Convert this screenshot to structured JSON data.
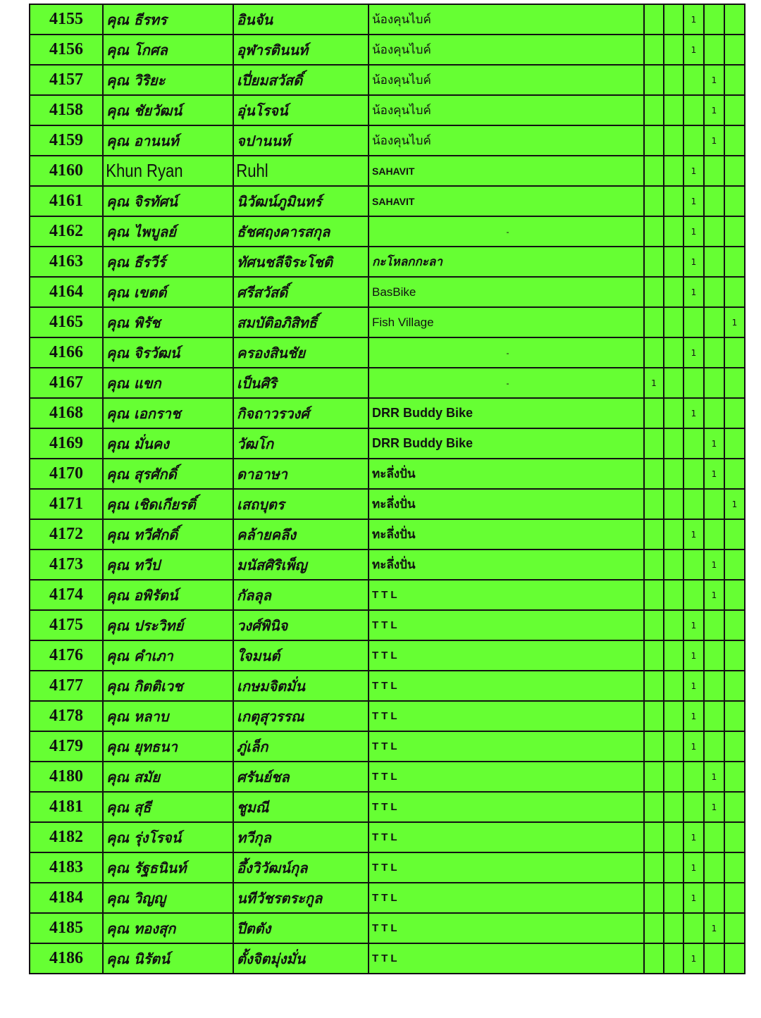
{
  "colors": {
    "row_background": "#66ff33",
    "border": "#111111"
  },
  "rows": [
    {
      "no": "4155",
      "first": "คุณ ธีรทร",
      "last": "อินจัน",
      "group": "น้องคุนไบค์",
      "marks": [
        "",
        "",
        "1",
        "",
        ""
      ]
    },
    {
      "no": "4156",
      "first": "คุณ โกศล",
      "last": "อุฬารตินนท์",
      "group": "น้องคุนไบค์",
      "marks": [
        "",
        "",
        "1",
        "",
        ""
      ]
    },
    {
      "no": "4157",
      "first": "คุณ วิริยะ",
      "last": "เปี่ยมสวัสดิ์",
      "group": "น้องคุนไบค์",
      "marks": [
        "",
        "",
        "",
        "1",
        ""
      ]
    },
    {
      "no": "4158",
      "first": "คุณ ชัยวัฒน์",
      "last": "อุ่นโรจน์",
      "group": "น้องคุนไบค์",
      "marks": [
        "",
        "",
        "",
        "1",
        ""
      ]
    },
    {
      "no": "4159",
      "first": "คุณ อานนท์",
      "last": "จปานนท์",
      "group": "น้องคุนไบค์",
      "marks": [
        "",
        "",
        "",
        "1",
        ""
      ]
    },
    {
      "no": "4160",
      "first": "Khun Ryan",
      "last": "Ruhl",
      "group": "SAHAVIT",
      "marks": [
        "",
        "",
        "1",
        "",
        ""
      ]
    },
    {
      "no": "4161",
      "first": "คุณ จิรทัศน์",
      "last": "นิวัฒน์ภูมินทร์",
      "group": "SAHAVIT",
      "marks": [
        "",
        "",
        "1",
        "",
        ""
      ]
    },
    {
      "no": "4162",
      "first": "คุณ ไพบูลย์",
      "last": "ธัชศฤงคารสกุล",
      "group": "-",
      "marks": [
        "",
        "",
        "1",
        "",
        ""
      ]
    },
    {
      "no": "4163",
      "first": "คุณ ธีรวีร์",
      "last": "ทัศนชลีจิระโชติ",
      "group": "กะโหลกกะลา",
      "marks": [
        "",
        "",
        "1",
        "",
        ""
      ]
    },
    {
      "no": "4164",
      "first": "คุณ เขตต์",
      "last": "ศรีสวัสดิ์",
      "group": "BasBike",
      "marks": [
        "",
        "",
        "1",
        "",
        ""
      ]
    },
    {
      "no": "4165",
      "first": "คุณ พิรัช",
      "last": "สมบัติอภิสิทธิ์",
      "group": "Fish Village",
      "marks": [
        "",
        "",
        "",
        "",
        "1"
      ]
    },
    {
      "no": "4166",
      "first": "คุณ จิรวัฒน์",
      "last": "ครองสินชัย",
      "group": "-",
      "marks": [
        "",
        "",
        "1",
        "",
        ""
      ]
    },
    {
      "no": "4167",
      "first": "คุณ แขก",
      "last": "เป็นศิริ",
      "group": "-",
      "marks": [
        "1",
        "",
        "",
        "",
        ""
      ]
    },
    {
      "no": "4168",
      "first": "คุณ เอกราช",
      "last": "กิจถาวรวงศ์",
      "group": "DRR Buddy Bike",
      "marks": [
        "",
        "",
        "1",
        "",
        ""
      ]
    },
    {
      "no": "4169",
      "first": "คุณ มั่นคง",
      "last": "วัฒโก",
      "group": "DRR Buddy Bike",
      "marks": [
        "",
        "",
        "",
        "1",
        ""
      ]
    },
    {
      "no": "4170",
      "first": "คุณ สุรศักดิ์",
      "last": "ดาอาษา",
      "group": "ทะลึ่งปั่น",
      "marks": [
        "",
        "",
        "",
        "1",
        ""
      ]
    },
    {
      "no": "4171",
      "first": "คุณ เชิดเกียรติ์",
      "last": "เสถบุตร",
      "group": "ทะลึ่งปั่น",
      "marks": [
        "",
        "",
        "",
        "",
        "1"
      ]
    },
    {
      "no": "4172",
      "first": "คุณ ทวีศักดิ์",
      "last": "คล้ายคลึง",
      "group": "ทะลึ่งปั่น",
      "marks": [
        "",
        "",
        "1",
        "",
        ""
      ]
    },
    {
      "no": "4173",
      "first": "คุณ ทวีป",
      "last": "มนัสศิริเพ็ญ",
      "group": "ทะลึ่งปั่น",
      "marks": [
        "",
        "",
        "",
        "1",
        ""
      ]
    },
    {
      "no": "4174",
      "first": "คุณ อพิรัตน์",
      "last": "กัลลุล",
      "group": "TTL",
      "marks": [
        "",
        "",
        "",
        "1",
        ""
      ]
    },
    {
      "no": "4175",
      "first": "คุณ ประวิทย์",
      "last": "วงศ์พินิจ",
      "group": "TTL",
      "marks": [
        "",
        "",
        "1",
        "",
        ""
      ]
    },
    {
      "no": "4176",
      "first": "คุณ คำเภา",
      "last": "ใจมนต์",
      "group": "TTL",
      "marks": [
        "",
        "",
        "1",
        "",
        ""
      ]
    },
    {
      "no": "4177",
      "first": "คุณ กิตติเวช",
      "last": "เกษมจิตมั่น",
      "group": "TTL",
      "marks": [
        "",
        "",
        "1",
        "",
        ""
      ]
    },
    {
      "no": "4178",
      "first": "คุณ หลาบ",
      "last": "เกตุสุวรรณ",
      "group": "TTL",
      "marks": [
        "",
        "",
        "1",
        "",
        ""
      ]
    },
    {
      "no": "4179",
      "first": "คุณ ยุทธนา",
      "last": "ภู่เล็ก",
      "group": "TTL",
      "marks": [
        "",
        "",
        "1",
        "",
        ""
      ]
    },
    {
      "no": "4180",
      "first": "คุณ สมัย",
      "last": "ศรันย์ชล",
      "group": "TTL",
      "marks": [
        "",
        "",
        "",
        "1",
        ""
      ]
    },
    {
      "no": "4181",
      "first": "คุณ สุธี",
      "last": "ชูมณี",
      "group": "TTL",
      "marks": [
        "",
        "",
        "",
        "1",
        ""
      ]
    },
    {
      "no": "4182",
      "first": "คุณ รุ่งโรจน์",
      "last": "ทวีกุล",
      "group": "TTL",
      "marks": [
        "",
        "",
        "1",
        "",
        ""
      ]
    },
    {
      "no": "4183",
      "first": "คุณ รัฐธนินท์",
      "last": "อึ้งวิวัฒน์กุล",
      "group": "TTL",
      "marks": [
        "",
        "",
        "1",
        "",
        ""
      ]
    },
    {
      "no": "4184",
      "first": "คุณ วิญญู",
      "last": "นทีวัชรตระกูล",
      "group": "TTL",
      "marks": [
        "",
        "",
        "1",
        "",
        ""
      ]
    },
    {
      "no": "4185",
      "first": "คุณ ทองสุก",
      "last": "ปีตตัง",
      "group": "TTL",
      "marks": [
        "",
        "",
        "",
        "1",
        ""
      ]
    },
    {
      "no": "4186",
      "first": "คุณ นิรัตน์",
      "last": "ตั้งจิตมุ่งมั่น",
      "group": "TTL",
      "marks": [
        "",
        "",
        "1",
        "",
        ""
      ]
    }
  ]
}
